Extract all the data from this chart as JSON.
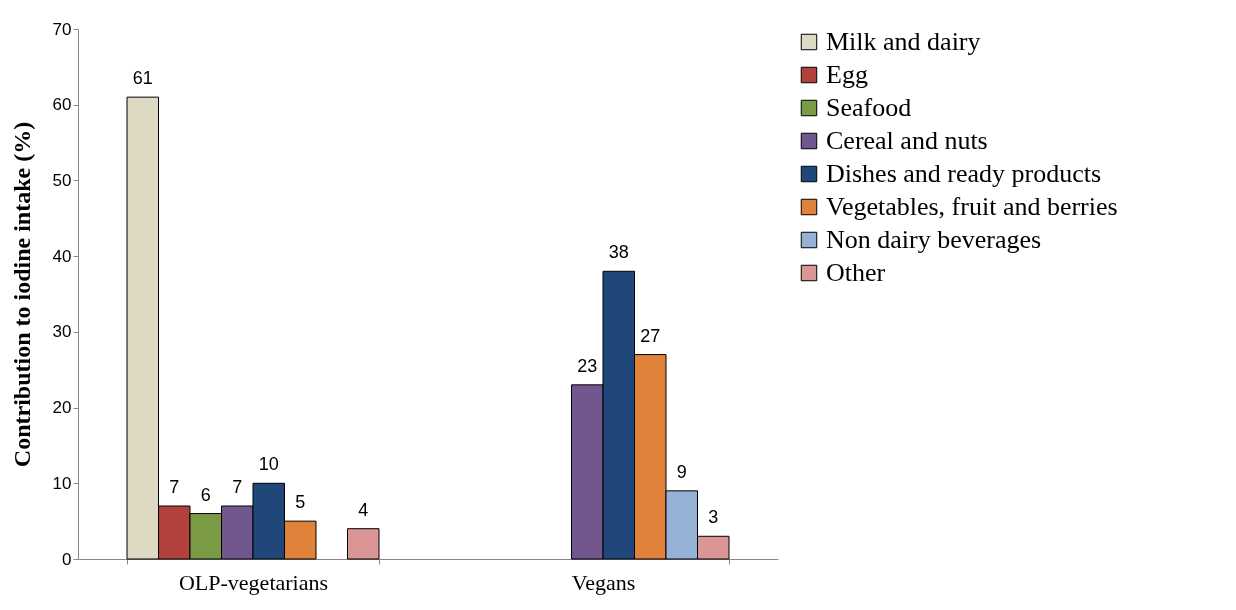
{
  "chart_data": {
    "type": "bar",
    "ylabel": "Contribution to iodine intake (%)",
    "categories": [
      "OLP-vegetarians",
      "Vegans"
    ],
    "series": [
      {
        "name": "Milk and dairy",
        "color": "#ddd9c3",
        "values": [
          61,
          null
        ]
      },
      {
        "name": "Egg",
        "color": "#b2413d",
        "values": [
          7,
          null
        ]
      },
      {
        "name": "Seafood",
        "color": "#7a9a43",
        "values": [
          6,
          null
        ]
      },
      {
        "name": "Cereal and nuts",
        "color": "#725690",
        "values": [
          7,
          23
        ]
      },
      {
        "name": "Dishes and ready products",
        "color": "#1f477a",
        "values": [
          10,
          38
        ]
      },
      {
        "name": "Vegetables, fruit and berries",
        "color": "#e0823a",
        "values": [
          5,
          27
        ]
      },
      {
        "name": "Non dairy beverages",
        "color": "#95b2d6",
        "values": [
          null,
          9
        ]
      },
      {
        "name": "Other",
        "color": "#d99694",
        "values": [
          4,
          3
        ]
      }
    ],
    "ylim": [
      0,
      70
    ],
    "yticks": [
      0,
      10,
      20,
      30,
      40,
      50,
      60,
      70
    ],
    "grid": false,
    "legend": "right",
    "data_labels": true
  }
}
